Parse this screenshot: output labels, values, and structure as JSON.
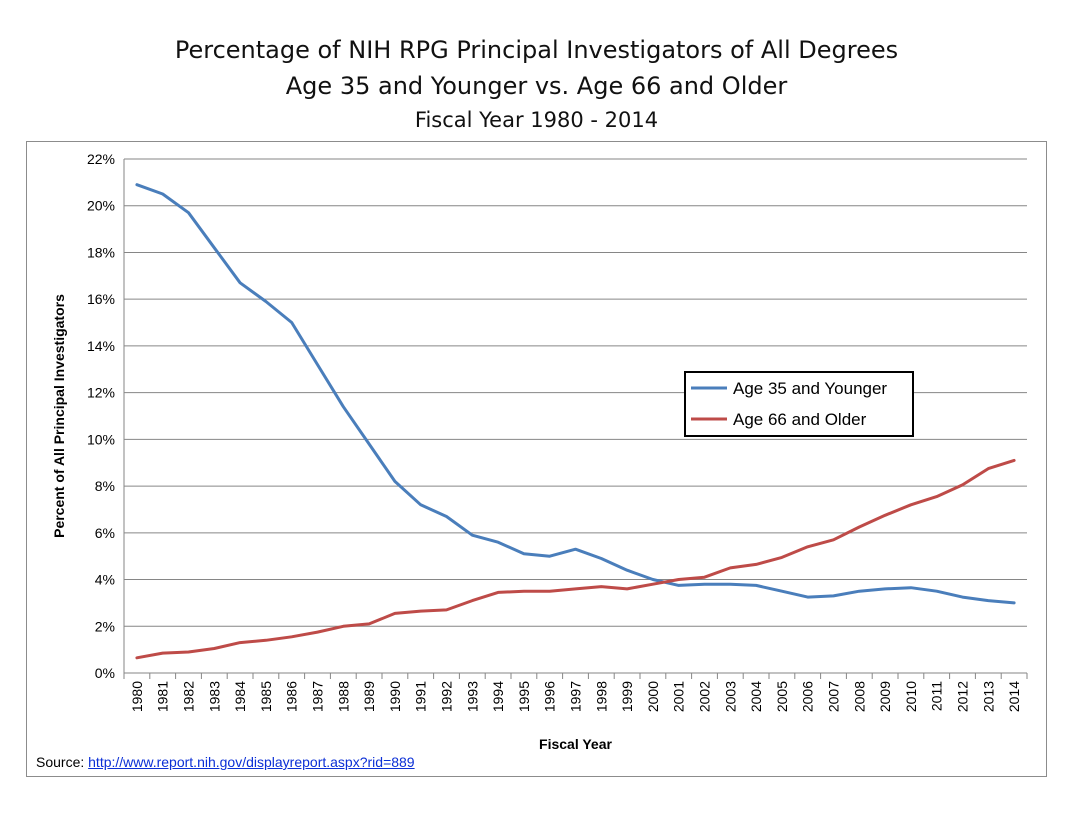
{
  "chart_data": {
    "type": "line",
    "title": "Percentage of NIH RPG Principal Investigators of All Degrees",
    "subtitle": "Age 35 and Younger vs. Age 66 and Older",
    "subtitle2": "Fiscal Year 1980 - 2014",
    "xlabel": "Fiscal Year",
    "ylabel": "Percent of All Principal Investigators",
    "x": [
      "1980",
      "1981",
      "1982",
      "1983",
      "1984",
      "1985",
      "1986",
      "1987",
      "1988",
      "1989",
      "1990",
      "1991",
      "1992",
      "1993",
      "1994",
      "1995",
      "1996",
      "1997",
      "1998",
      "1999",
      "2000",
      "2001",
      "2002",
      "2003",
      "2004",
      "2005",
      "2006",
      "2007",
      "2008",
      "2009",
      "2010",
      "2011",
      "2012",
      "2013",
      "2014"
    ],
    "ylim": [
      0,
      22
    ],
    "yticks": [
      "0%",
      "2%",
      "4%",
      "6%",
      "8%",
      "10%",
      "12%",
      "14%",
      "16%",
      "18%",
      "20%",
      "22%"
    ],
    "grid": true,
    "legend": "center-right",
    "series": [
      {
        "name": "Age 35 and Younger",
        "color": "#4a7ebb",
        "values": [
          20.9,
          20.5,
          19.7,
          18.2,
          16.7,
          15.9,
          15.0,
          13.2,
          11.4,
          9.8,
          8.2,
          7.2,
          6.7,
          5.9,
          5.6,
          5.1,
          5.0,
          5.3,
          4.9,
          4.4,
          4.0,
          3.75,
          3.8,
          3.8,
          3.75,
          3.5,
          3.25,
          3.3,
          3.5,
          3.6,
          3.65,
          3.5,
          3.25,
          3.1,
          3.0
        ]
      },
      {
        "name": "Age 66 and Older",
        "color": "#be4b48",
        "values": [
          0.65,
          0.85,
          0.9,
          1.05,
          1.3,
          1.4,
          1.55,
          1.75,
          2.0,
          2.1,
          2.55,
          2.65,
          2.7,
          3.1,
          3.45,
          3.5,
          3.5,
          3.6,
          3.7,
          3.6,
          3.8,
          4.0,
          4.1,
          4.5,
          4.65,
          4.95,
          5.4,
          5.7,
          6.25,
          6.75,
          7.2,
          7.55,
          8.05,
          8.75,
          9.1
        ]
      }
    ]
  },
  "source": {
    "label": "Source: ",
    "url": "http://www.report.nih.gov/displayreport.aspx?rid=889"
  }
}
